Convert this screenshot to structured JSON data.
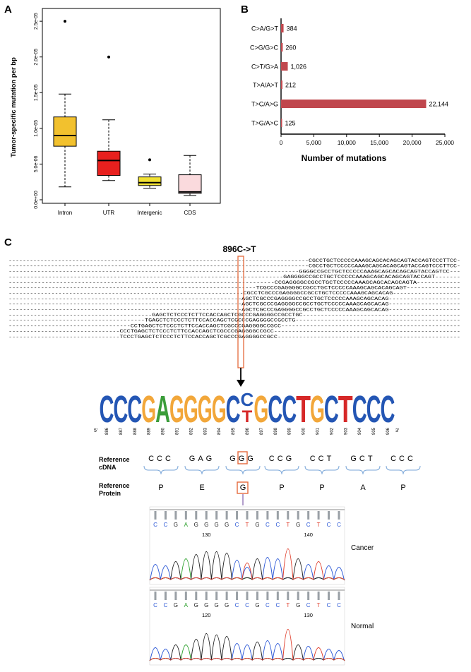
{
  "panel_labels": {
    "a": "A",
    "b": "B",
    "c": "C"
  },
  "chart_data": [
    {
      "type": "box",
      "panel": "A",
      "ylabel": "Tumor-specific mutation per bp",
      "ylim": [
        0,
        2.6e-05
      ],
      "yticks": [
        0,
        5e-06,
        1e-05,
        1.5e-05,
        2e-05,
        2.5e-05
      ],
      "ytick_labels": [
        "0.0e+00",
        "5.0e-06",
        "1.0e-05",
        "1.5e-05",
        "2.0e-05",
        "2.5e-05"
      ],
      "categories": [
        "Intron",
        "UTR",
        "Intergenic",
        "CDS"
      ],
      "box_colors": [
        "#f2c12e",
        "#e8201e",
        "#f0e032",
        "#fadadd"
      ],
      "boxes": [
        {
          "whisker_low": 1.8e-06,
          "q1": 7.5e-06,
          "median": 9e-06,
          "q3": 1.16e-05,
          "whisker_high": 1.48e-05,
          "outliers": [
            2.5e-05
          ]
        },
        {
          "whisker_low": 2.7e-06,
          "q1": 3.4e-06,
          "median": 5.5e-06,
          "q3": 6.8e-06,
          "whisker_high": 1.12e-05,
          "outliers": [
            2e-05
          ]
        },
        {
          "whisker_low": 1.6e-06,
          "q1": 2e-06,
          "median": 2.4e-06,
          "q3": 3.2e-06,
          "whisker_high": 3.6e-06,
          "outliers": [
            5.6e-06
          ]
        },
        {
          "whisker_low": 6e-07,
          "q1": 9e-07,
          "median": 1.1e-06,
          "q3": 3.5e-06,
          "whisker_high": 6.2e-06,
          "outliers": []
        }
      ]
    },
    {
      "type": "bar",
      "orientation": "horizontal",
      "panel": "B",
      "categories": [
        "C>A/G>T",
        "C>G/G>C",
        "C>T/G>A",
        "T>A/A>T",
        "T>C/A>G",
        "T>G/A>C"
      ],
      "values": [
        384,
        260,
        1026,
        212,
        22144,
        125
      ],
      "value_labels": [
        "384",
        "260",
        "1,026",
        "212",
        "22,144",
        "125"
      ],
      "xlabel": "Number of mutations",
      "xlim": [
        0,
        25000
      ],
      "xticks": [
        0,
        5000,
        10000,
        15000,
        20000,
        25000
      ],
      "xtick_labels": [
        "0",
        "5,000",
        "10,000",
        "15,000",
        "20,000",
        "25,000"
      ],
      "bar_color": "#c0474d"
    }
  ],
  "panel_c": {
    "mutation_title": "896C->T",
    "reads": [
      "-------------------------------------------------------------------------------------CGCCTGCTCCCCCAAAGCAGCACAGCAGTACCAGTCCCTTCC-",
      "-------------------------------------------------------------------------------------CGCCTGCTCCCCCAAAGCAGCACAGCAGTACCAGTCCCTTCC-",
      "---------------------------------------------------------------------------------GGGGCCGCCTGCTCCCCCAAAGCAGCACAGCAGTACCAGTCC---",
      "----------------------------------------------------------------------------GAGGGGCCGCCTGCTCCCCCAAAGCAGCACAGCAGTACCAGT-------",
      "-------------------------------------------------------------------------CCGAGGGGCCGCCTGCTCCCCCAAAGCAGCACAGCAGTA------------",
      "---------------------------------------------------------------------TCGCCCGAGGGGCCGCCTGCTCCCCCAAAGCAGCACAGCAGT---------------",
      "------------------------------------------------------------------CGCCTCGCCCGAGGGGCCGCCTGCTCCCCCAAAGCAGCACAG-------------------",
      "-----------------------------------------------------------------AGCTCGCCCGAGGGGCCGCCTGCTCCCCCAAAGCAGCACAG--------------------",
      "-----------------------------------------------------------------AGCTCGCCCGAGGGGCCGCCTGCTCCCCCAAAGCAGCACAG--------------------",
      "-----------------------------------------------------------------AGCTCGCCCGAGGGGCCGCCTGCTCCCCCAAAGCAGCACAG--------------------",
      "----------------------------------------GAGCTCTCCCTCTTCCACCAGCTCGCCCGAGGGGCCGCCTGC--------------------------------------------",
      "--------------------------------------TGAGCTCTCCCTCTTCCACCAGCTCGCCCGAGGGGCCGCCTG----------------------------------------------",
      "----------------------------------CCTGAGCTCTCCCTCTTCCACCAGCTCGCCCGAGGGGCCGCC--------------------------------------------------",
      "-------------------------------CCCTGAGCTCTCCCTCTTCCACCAGCTCGCCCGAGGGGCCGCC----------------------------------------------------",
      "-------------------------------TCCCTGAGCTCTCCCTCTTCCACCAGCTCGCCCGAGGGGCCGCC---------------------------------------------------"
    ],
    "logo_letters": [
      "C",
      "C",
      "C",
      "G",
      "A",
      "G",
      "G",
      "G",
      "G",
      "C",
      "C",
      "G",
      "C",
      "C",
      "T",
      "G",
      "C",
      "T",
      "C",
      "C",
      "C"
    ],
    "logo_positions": [
      "886",
      "887",
      "888",
      "889",
      "890",
      "891",
      "892",
      "893",
      "894",
      "895",
      "896",
      "897",
      "898",
      "899",
      "900",
      "901",
      "902",
      "903",
      "904",
      "905",
      "906"
    ],
    "logo_end_5": "5'",
    "logo_end_3": "3'",
    "logo_sub_letter": "T",
    "reference_cdna_label": "Reference cDNA",
    "reference_protein_label": "Reference Protein",
    "codons": [
      "CCC",
      "GAG",
      "GGG",
      "CCG",
      "CCT",
      "GCT",
      "CCC"
    ],
    "amino_acids": [
      "P",
      "E",
      "G",
      "P",
      "P",
      "A",
      "P"
    ],
    "cancer_label": "Cancer",
    "normal_label": "Normal",
    "cancer_bases": [
      "C",
      "C",
      "G",
      "A",
      "G",
      "G",
      "G",
      "G",
      "C",
      "T",
      "G",
      "C",
      "C",
      "T",
      "G",
      "C",
      "T",
      "C",
      "C"
    ],
    "normal_bases": [
      "C",
      "C",
      "G",
      "A",
      "G",
      "G",
      "G",
      "G",
      "C",
      "C",
      "G",
      "C",
      "C",
      "T",
      "G",
      "C",
      "T",
      "C",
      "C"
    ],
    "cancer_ticks": [
      "130",
      "140"
    ],
    "normal_ticks": [
      "120",
      "130"
    ],
    "base_colors": {
      "A": "#2ca02c",
      "C": "#2c58d6",
      "G": "#222222",
      "T": "#e0402e"
    }
  }
}
